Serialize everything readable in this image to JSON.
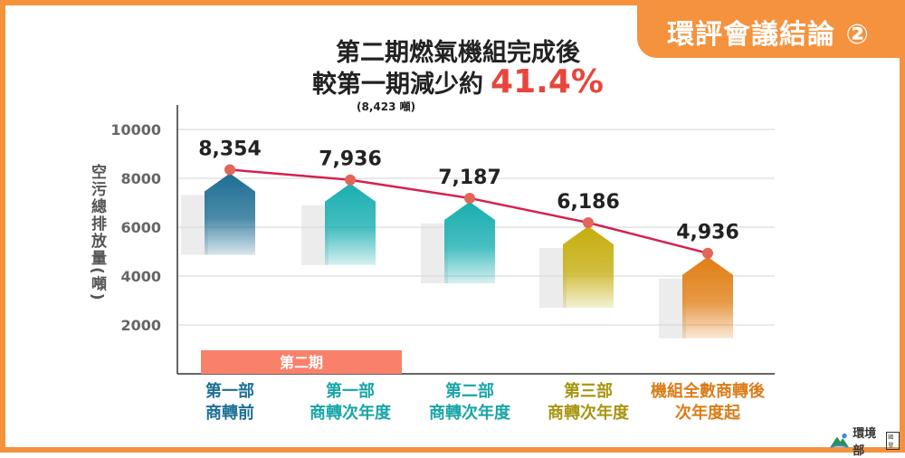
{
  "badge": {
    "text": "環評會議結論 ②"
  },
  "headline": {
    "line1": "第二期燃氣機組完成後",
    "line2_prefix": "較第一期減少約",
    "line2_value": "41.4%",
    "sub": "(8,423 噸)"
  },
  "logo": {
    "name": "環境部",
    "tag": "國發"
  },
  "chart_data": {
    "type": "line",
    "ylabel": "空污總排放量(噸)",
    "yticks": [
      2000,
      4000,
      6000,
      8000,
      10000
    ],
    "ylim": [
      0,
      11000
    ],
    "grid": true,
    "group_label": "第二期",
    "categories": [
      {
        "line1": "第一部",
        "line2": "商轉前"
      },
      {
        "line1": "第一部",
        "line2": "商轉次年度"
      },
      {
        "line1": "第二部",
        "line2": "商轉次年度"
      },
      {
        "line1": "第三部",
        "line2": "商轉次年度"
      },
      {
        "line1": "機組全數商轉後",
        "line2": "次年度起"
      }
    ],
    "values": [
      8354,
      7936,
      7187,
      6186,
      4936
    ],
    "value_labels": [
      "8,354",
      "7,936",
      "7,187",
      "6,186",
      "4,936"
    ],
    "colors": {
      "line": "#d6204f",
      "marker": "#e2665a",
      "bars": [
        "#1e6e94",
        "#19aeb0",
        "#19aeb0",
        "#c5ad0c",
        "#e07f16"
      ],
      "labels": [
        "#1d6f94",
        "#19a5a8",
        "#19a5a8",
        "#a89510",
        "#d97c18"
      ],
      "group_band": "#f9816a"
    }
  }
}
